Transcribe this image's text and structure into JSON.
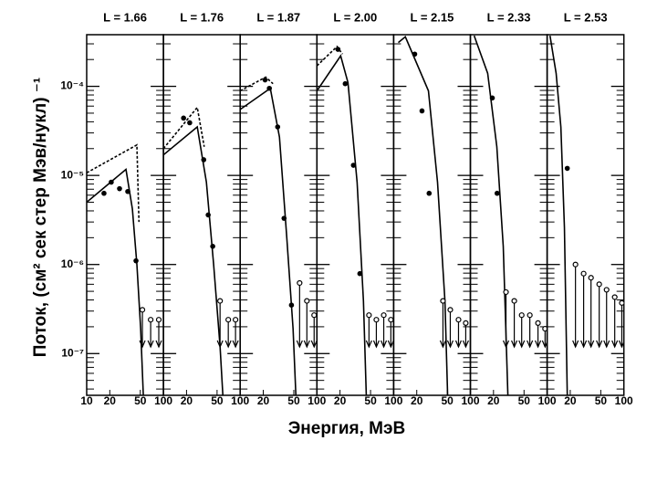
{
  "xlabel": "Энергия, МэВ",
  "ylabel": "Поток, (см² сек стер Мэв/нукл) ⁻¹",
  "chart_data": [
    {
      "type": "line",
      "title": "L = 1.66",
      "log": true,
      "xlim": [
        10,
        100
      ],
      "ylim": [
        3.4e-08,
        0.00038
      ],
      "xticks": [
        10,
        20,
        50,
        100
      ],
      "yticks": [
        {
          "value": 0.0001,
          "label": "10⁻⁴"
        },
        {
          "value": 1e-05,
          "label": "10⁻⁵"
        },
        {
          "value": 1e-06,
          "label": "10⁻⁶"
        },
        {
          "value": 1e-07,
          "label": "10⁻⁷"
        }
      ],
      "solid_curve": {
        "x": [
          10,
          32.5,
          39.4,
          45.1,
          50.5,
          54.7
        ],
        "y": [
          5e-06,
          1.17e-05,
          4.2e-06,
          1e-06,
          1.9e-07,
          3.4e-08
        ]
      },
      "dashed_curve": {
        "x": [
          10,
          45.1,
          48
        ],
        "y": [
          1.07e-05,
          2.2e-05,
          3e-06
        ]
      },
      "points": {
        "x": [
          16.8,
          20.9,
          26.8,
          34.3,
          43.9
        ],
        "y": [
          6.3e-06,
          8.4e-06,
          7.1e-06,
          6.6e-06,
          1.1e-06
        ]
      },
      "upper_limits": {
        "x": [
          53.2,
          68.2,
          87.0
        ],
        "y": [
          3.1e-07,
          2.4e-07,
          2.4e-07
        ]
      }
    },
    {
      "type": "line",
      "title": "L = 1.76",
      "log": true,
      "xlim": [
        10,
        100
      ],
      "ylim": [
        3.4e-08,
        0.00038
      ],
      "xticks": [
        20,
        50,
        100
      ],
      "solid_curve": {
        "x": [
          10,
          27.6,
          36.3,
          45.1,
          54.7,
          59.5
        ],
        "y": [
          1.7e-05,
          3.5e-05,
          8.4e-06,
          1e-06,
          1.2e-07,
          3.4e-08
        ]
      },
      "dashed_curve": {
        "x": [
          10,
          27.6,
          34
        ],
        "y": [
          2e-05,
          5.8e-05,
          2.1e-05
        ]
      },
      "points": {
        "x": [
          18.3,
          22,
          33.5,
          38.3,
          43.9
        ],
        "y": [
          4.4e-05,
          3.9e-05,
          1.5e-05,
          3.6e-06,
          1.6e-06
        ]
      },
      "upper_limits": {
        "x": [
          54.7,
          70,
          87
        ],
        "y": [
          3.9e-07,
          2.4e-07,
          2.4e-07
        ]
      }
    },
    {
      "type": "line",
      "title": "L = 1.87",
      "log": true,
      "xlim": [
        10,
        100
      ],
      "ylim": [
        3.4e-08,
        0.00038
      ],
      "xticks": [
        20,
        50,
        100
      ],
      "solid_curve": {
        "x": [
          10,
          24.7,
          32.5,
          40.5,
          48.9,
          53.2
        ],
        "y": [
          5.5e-05,
          9.5e-05,
          2.7e-05,
          2e-06,
          1.9e-07,
          3.4e-08
        ]
      },
      "dashed_curve": {
        "x": [
          10,
          21.5,
          26.8
        ],
        "y": [
          8.9e-05,
          0.000127,
          0.000107
        ]
      },
      "points": {
        "x": [
          21.1,
          24.0,
          30.8,
          37.3,
          46.6
        ],
        "y": [
          0.000118,
          9.5e-05,
          3.5e-05,
          3.3e-06,
          3.5e-07
        ]
      },
      "upper_limits": {
        "x": [
          59.5,
          74,
          92
        ],
        "y": [
          6.2e-07,
          3.9e-07,
          2.7e-07
        ]
      }
    },
    {
      "type": "line",
      "title": "L = 2.00",
      "log": true,
      "xlim": [
        10,
        100
      ],
      "ylim": [
        3.4e-08,
        0.00038
      ],
      "xticks": [
        20,
        50,
        100
      ],
      "solid_curve": {
        "x": [
          10,
          20.4,
          25.4,
          33.4,
          40.4,
          44
        ],
        "y": [
          8.9e-05,
          0.00022,
          0.00011,
          8.4e-06,
          3.9e-07,
          3.4e-08
        ]
      },
      "dashed_curve": {
        "x": [
          10,
          18.3,
          21.5
        ],
        "y": [
          0.00017,
          0.00028,
          0.00023
        ]
      },
      "points": {
        "x": [
          18.8,
          23.4,
          29.9,
          36.3
        ],
        "y": [
          0.00026,
          0.000107,
          1.3e-05,
          7.9e-07
        ]
      },
      "upper_limits": {
        "x": [
          47.7,
          59.5,
          74.3,
          92
        ],
        "y": [
          2.7e-07,
          2.4e-07,
          2.7e-07,
          2.4e-07
        ]
      }
    },
    {
      "type": "line",
      "title": "L = 2.15",
      "log": true,
      "xlim": [
        10,
        100
      ],
      "ylim": [
        3.4e-08,
        0.00038
      ],
      "xticks": [
        20,
        50,
        100
      ],
      "solid_curve": {
        "x": [
          11.5,
          14.2,
          28.4,
          37.3,
          46.6,
          50.5
        ],
        "y": [
          0.00031,
          0.00036,
          8.9e-05,
          8.4e-06,
          3.9e-07,
          3.4e-08
        ]
      },
      "points": {
        "x": [
          18.8,
          23.4,
          29
        ],
        "y": [
          0.00023,
          5.3e-05,
          6.3e-06
        ]
      },
      "upper_limits": {
        "x": [
          43.9,
          54.7,
          70,
          87
        ],
        "y": [
          3.9e-07,
          3.1e-07,
          2.4e-07,
          2.2e-07
        ]
      }
    },
    {
      "type": "line",
      "title": "L = 2.33",
      "log": true,
      "xlim": [
        10,
        100
      ],
      "ylim": [
        3.4e-08,
        0.00038
      ],
      "xticks": [
        20,
        50,
        100
      ],
      "solid_curve": {
        "x": [
          11.2,
          16.8,
          22.1,
          26.8,
          30.8
        ],
        "y": [
          0.00037,
          0.00014,
          2.1e-05,
          1.6e-06,
          3.4e-08
        ]
      },
      "points": {
        "x": [
          19.3,
          22.3
        ],
        "y": [
          7.4e-05,
          6.3e-06
        ]
      },
      "upper_limits": {
        "x": [
          29.1,
          37.3,
          46.6,
          59.5,
          76,
          94
        ],
        "y": [
          4.9e-07,
          3.9e-07,
          2.7e-07,
          2.7e-07,
          2.2e-07,
          1.9e-07
        ]
      }
    },
    {
      "type": "line",
      "title": "L = 2.53",
      "log": true,
      "xlim": [
        10,
        100
      ],
      "ylim": [
        3.4e-08,
        0.00038
      ],
      "xticks": [
        20,
        50,
        100
      ],
      "solid_curve": {
        "x": [
          10.9,
          13.1,
          15.1,
          16.8,
          18.3
        ],
        "y": [
          0.00037,
          0.00014,
          3.5e-05,
          2.6e-06,
          3.4e-08
        ]
      },
      "points": {
        "x": [
          18.3
        ],
        "y": [
          1.2e-05
        ]
      },
      "upper_limits": {
        "x": [
          23.4,
          29.9,
          37.3,
          47.7,
          59.5,
          76,
          94
        ],
        "y": [
          1e-06,
          7.9e-07,
          7.1e-07,
          6e-07,
          5.2e-07,
          4.3e-07,
          3.7e-07
        ]
      }
    }
  ]
}
